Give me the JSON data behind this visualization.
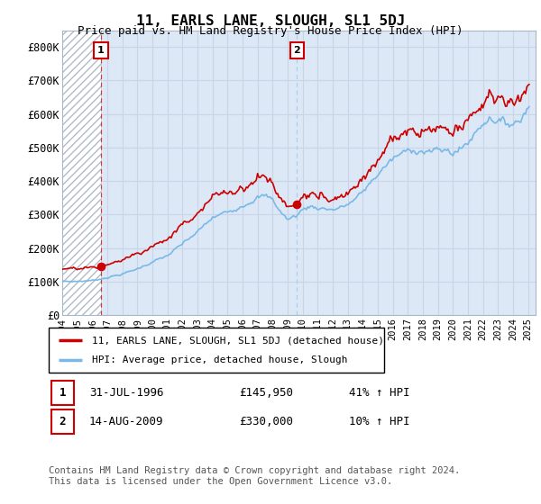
{
  "title": "11, EARLS LANE, SLOUGH, SL1 5DJ",
  "subtitle": "Price paid vs. HM Land Registry's House Price Index (HPI)",
  "ylim": [
    0,
    850000
  ],
  "yticks": [
    0,
    100000,
    200000,
    300000,
    400000,
    500000,
    600000,
    700000,
    800000
  ],
  "ytick_labels": [
    "£0",
    "£100K",
    "£200K",
    "£300K",
    "£400K",
    "£500K",
    "£600K",
    "£700K",
    "£800K"
  ],
  "xlim_start": 1994.0,
  "xlim_end": 2025.5,
  "hpi_color": "#7ab8e8",
  "price_color": "#cc0000",
  "marker_color": "#cc0000",
  "annotation1_label": "1",
  "annotation2_label": "2",
  "s1_year": 1996.58,
  "s1_price": 145950,
  "s2_year": 2009.62,
  "s2_price": 330000,
  "legend_line1": "11, EARLS LANE, SLOUGH, SL1 5DJ (detached house)",
  "legend_line2": "HPI: Average price, detached house, Slough",
  "table_row1_num": "1",
  "table_row1_date": "31-JUL-1996",
  "table_row1_price": "£145,950",
  "table_row1_hpi": "41% ↑ HPI",
  "table_row2_num": "2",
  "table_row2_date": "14-AUG-2009",
  "table_row2_price": "£330,000",
  "table_row2_hpi": "10% ↑ HPI",
  "footnote": "Contains HM Land Registry data © Crown copyright and database right 2024.\nThis data is licensed under the Open Government Licence v3.0.",
  "grid_color": "#c8d4e8",
  "plot_bg_color": "#dce8f5",
  "hatch_end_year": 1996.58,
  "vline2_color": "#aaccee"
}
